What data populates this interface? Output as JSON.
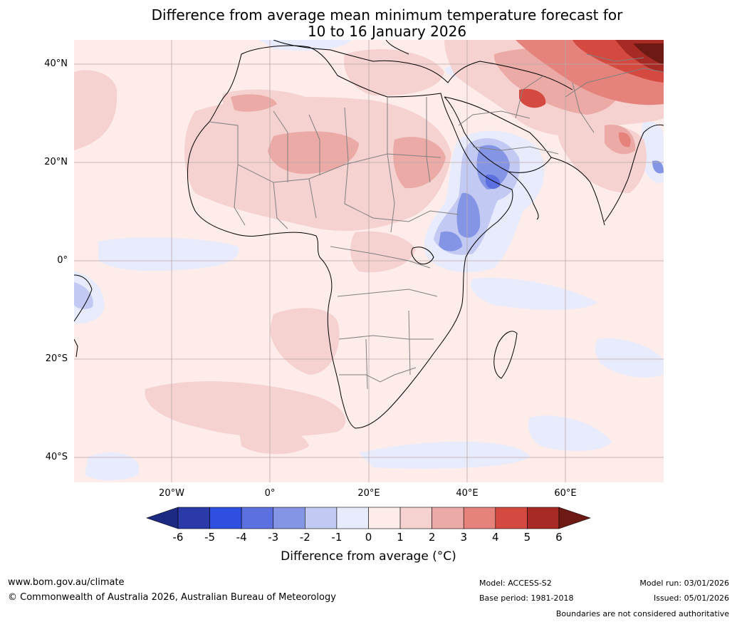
{
  "title": {
    "line1": "Difference from average mean minimum temperature forecast for",
    "line2": "10 to 16 January 2026"
  },
  "map": {
    "lat_labels": [
      "40°N",
      "20°N",
      "0°",
      "20°S",
      "40°S"
    ],
    "lon_labels": [
      "20°W",
      "0°",
      "20°E",
      "40°E",
      "60°E"
    ]
  },
  "colorbar": {
    "ticks": [
      "-6",
      "-5",
      "-4",
      "-3",
      "-2",
      "-1",
      "0",
      "1",
      "2",
      "3",
      "4",
      "5",
      "6"
    ],
    "label": "Difference from average (°C)",
    "colors": [
      "#1c2a84",
      "#2a3aa8",
      "#2f4fe0",
      "#5c70e0",
      "#8595e6",
      "#c2c9f2",
      "#e8ebfb",
      "#fdecea",
      "#f5d1cf",
      "#ebaaa6",
      "#e4827b",
      "#d54a40",
      "#a82a24",
      "#6e1a14"
    ]
  },
  "footer": {
    "website": "www.bom.gov.au/climate",
    "copyright": "© Commonwealth of Australia 2026, Australian Bureau of Meteorology",
    "model": "Model: ACCESS-S2",
    "base_period": "Base period: 1981-2018",
    "model_run": "Model run: 03/01/2026",
    "issued": "Issued: 05/01/2026",
    "disclaimer": "Boundaries are not considered authoritative"
  }
}
